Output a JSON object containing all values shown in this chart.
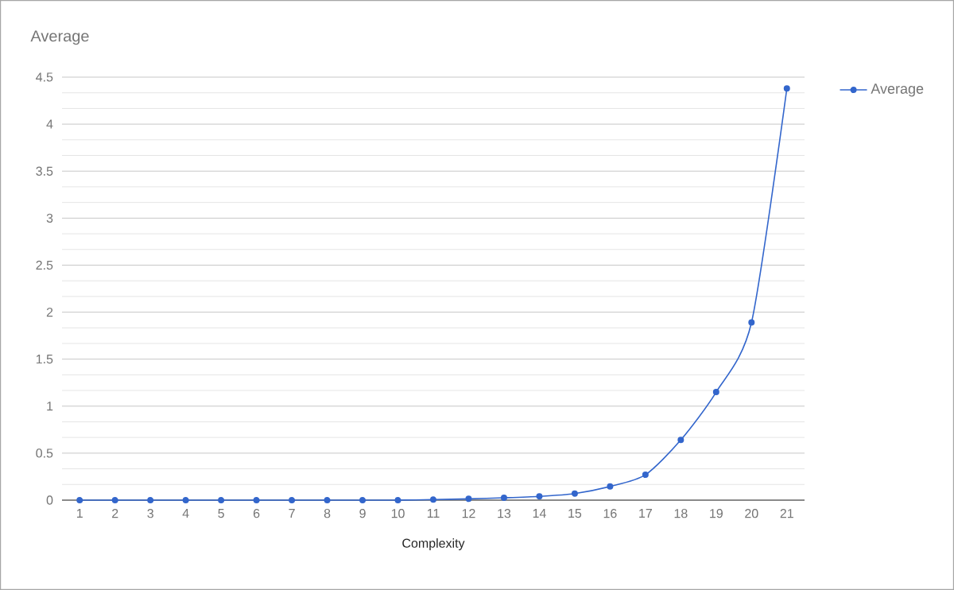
{
  "chart_data": {
    "type": "line",
    "title": "Average",
    "xlabel": "Complexity",
    "categories": [
      "1",
      "2",
      "3",
      "4",
      "5",
      "6",
      "7",
      "8",
      "9",
      "10",
      "11",
      "12",
      "13",
      "14",
      "15",
      "16",
      "17",
      "18",
      "19",
      "20",
      "21"
    ],
    "series": [
      {
        "name": "Average",
        "color": "#3366cc",
        "values": [
          0,
          0,
          0,
          0,
          0,
          0,
          0,
          0,
          0,
          0,
          0.006,
          0.014,
          0.025,
          0.04,
          0.07,
          0.146,
          0.27,
          0.64,
          1.15,
          1.89,
          4.38
        ]
      }
    ],
    "ylim": [
      0,
      4.5
    ],
    "yticks": [
      0,
      0.5,
      1,
      1.5,
      2,
      2.5,
      3,
      3.5,
      4,
      4.5
    ],
    "grid": "y",
    "legend": "right",
    "marker": "circle",
    "line_style": "solid"
  }
}
